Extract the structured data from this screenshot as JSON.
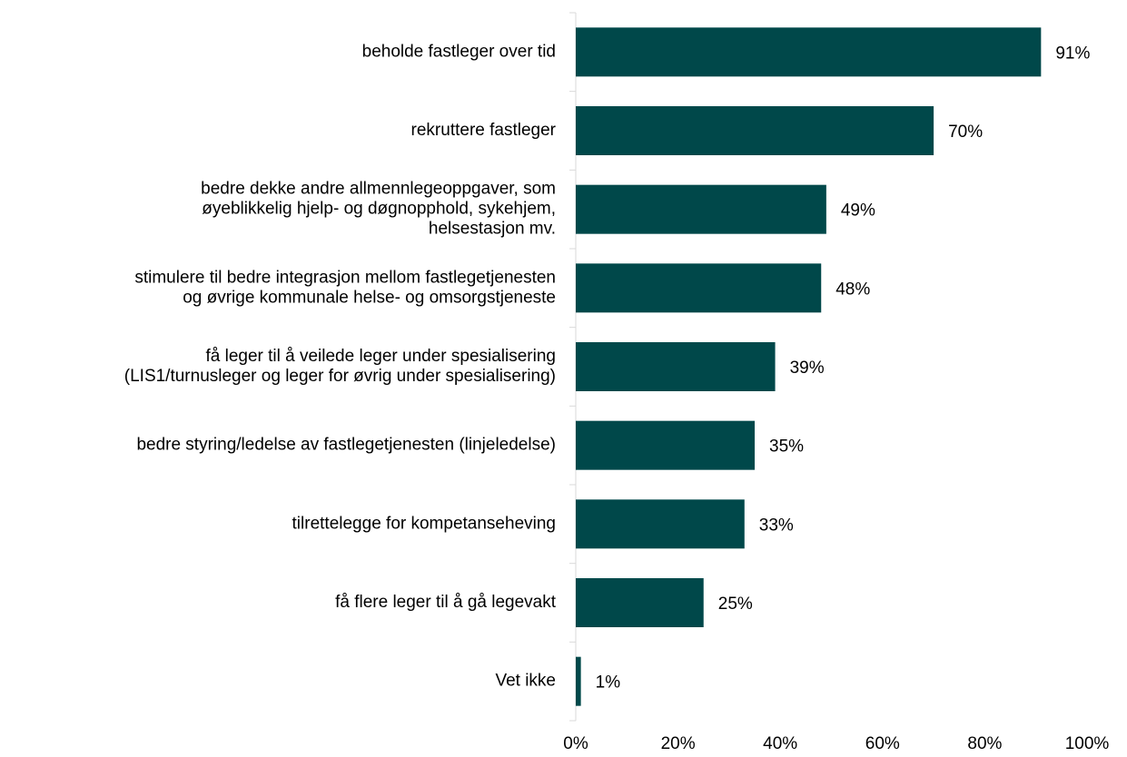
{
  "chart_data": {
    "type": "bar",
    "orientation": "horizontal",
    "color": "#00484a",
    "categories": [
      "beholde fastleger over tid",
      "rekruttere fastleger",
      "bedre dekke andre allmennlegeoppgaver, som\nøyeblikkelig hjelp- og døgnopphold, sykehjem,\nhelsestasjon mv.",
      "stimulere til bedre integrasjon mellom fastlegetjenesten\nog øvrige kommunale helse- og omsorgstjeneste",
      "få leger til å veilede leger under spesialisering\n(LIS1/turnusleger og leger for øvrig under spesialisering)",
      "bedre styring/ledelse av fastlegetjenesten (linjeledelse)",
      "tilrettelegge for kompetanseheving",
      "få flere leger til å gå legevakt",
      "Vet ikke"
    ],
    "values": [
      91,
      70,
      49,
      48,
      39,
      35,
      33,
      25,
      1
    ],
    "value_labels": [
      "91%",
      "70%",
      "49%",
      "48%",
      "39%",
      "35%",
      "33%",
      "25%",
      "1%"
    ],
    "xlim": [
      0,
      100
    ],
    "xticks": [
      {
        "value": 0,
        "label": "0%"
      },
      {
        "value": 20,
        "label": "20%"
      },
      {
        "value": 40,
        "label": "40%"
      },
      {
        "value": 60,
        "label": "60%"
      },
      {
        "value": 80,
        "label": "80%"
      },
      {
        "value": 100,
        "label": "100%"
      }
    ],
    "grid": false
  }
}
